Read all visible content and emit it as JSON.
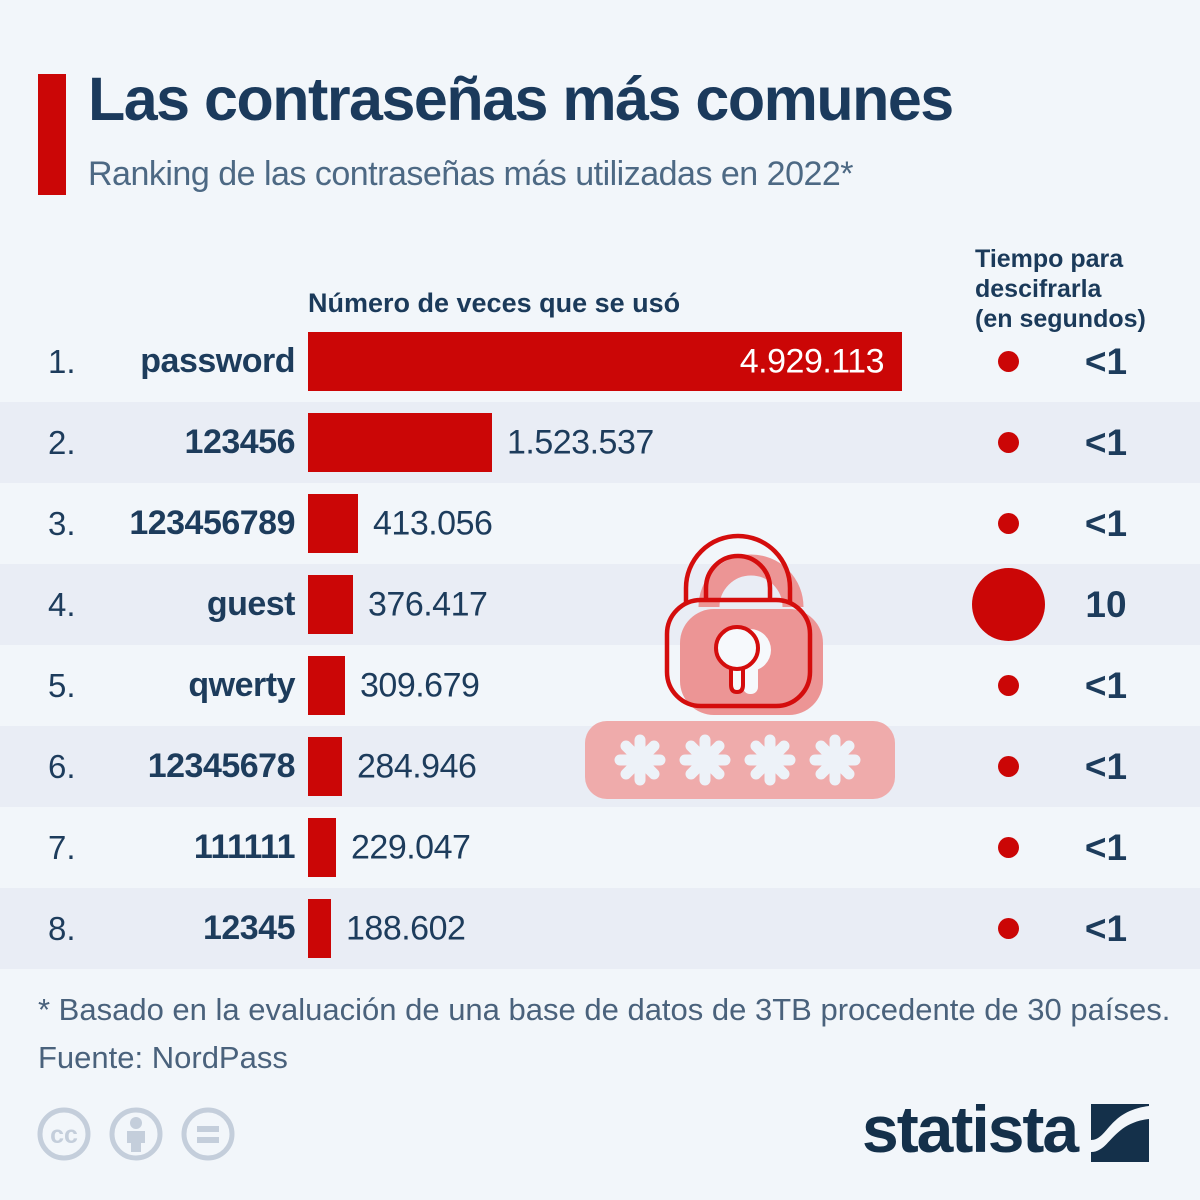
{
  "header": {
    "title": "Las contraseñas más comunes",
    "subtitle": "Ranking de las contraseñas más utilizadas en 2022*",
    "accent_color": "#cb0606"
  },
  "columns": {
    "usage_header": "Número de veces que se usó",
    "crack_time_header": "Tiempo para\ndescifrarla\n(en segundos)"
  },
  "chart_data": {
    "type": "bar",
    "orientation": "horizontal",
    "title": "Las contraseñas más comunes",
    "subtitle": "Ranking de las contraseñas más utilizadas en 2022*",
    "xlabel": "Número de veces que se usó",
    "secondary_metric_label": "Tiempo para descifrarla (en segundos)",
    "ranks": [
      "1.",
      "2.",
      "3.",
      "4.",
      "5.",
      "6.",
      "7.",
      "8."
    ],
    "categories": [
      "password",
      "123456",
      "123456789",
      "guest",
      "qwerty",
      "12345678",
      "111111",
      "12345"
    ],
    "values": [
      4929113,
      1523537,
      413056,
      376417,
      309679,
      284946,
      229047,
      188602
    ],
    "value_labels": [
      "4.929.113",
      "1.523.537",
      "413.056",
      "376.417",
      "309.679",
      "284.946",
      "229.047",
      "188.602"
    ],
    "crack_times": [
      "<1",
      "<1",
      "<1",
      "10",
      "<1",
      "<1",
      "<1",
      "<1"
    ],
    "crack_dot_sizes": [
      "small",
      "small",
      "small",
      "large",
      "small",
      "small",
      "small",
      "small"
    ],
    "xlim": [
      0,
      4929113
    ],
    "bar_color": "#cb0606",
    "grid": false,
    "legend": false
  },
  "footer": {
    "footnote": "* Basado en la evaluación de una base de datos de 3TB procedente de 30 países.",
    "source": "Fuente: NordPass"
  },
  "branding": {
    "logo_text": "statista",
    "license_icons": [
      "cc-icon",
      "attribution-person-icon",
      "no-derivatives-equals-icon"
    ]
  },
  "illustration_icons": [
    "padlock-icon",
    "password-asterisks-field"
  ],
  "colors": {
    "page_background": "#f2f6fa",
    "row_stripe": "#e9edf5",
    "red": "#cb0606",
    "title_navy": "#1b3a5c",
    "text_navy": "#1d3c5c",
    "subtitle_gray_blue": "#4d6984",
    "lock_pink": "#ec9595",
    "field_pink": "#efabab",
    "license_gray": "#c4cedb"
  }
}
